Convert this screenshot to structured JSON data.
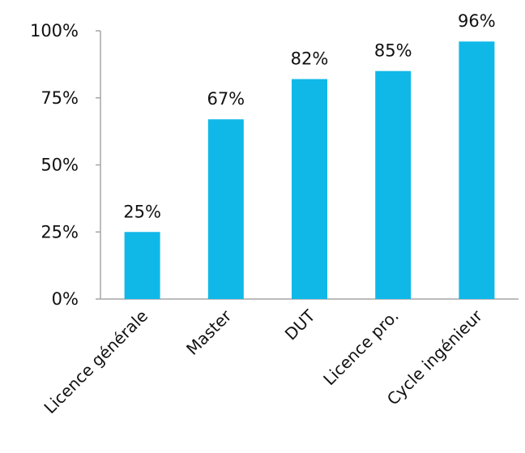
{
  "chart_data": {
    "type": "bar",
    "categories": [
      "Licence générale",
      "Master",
      "DUT",
      "Licence pro.",
      "Cycle ingénieur"
    ],
    "values": [
      25,
      67,
      82,
      85,
      96
    ],
    "data_labels": [
      "25%",
      "67%",
      "82%",
      "85%",
      "96%"
    ],
    "title": "",
    "xlabel": "",
    "ylabel": "",
    "ylim": [
      0,
      100
    ],
    "y_ticks": [
      0,
      25,
      50,
      75,
      100
    ],
    "y_tick_labels": [
      "0%",
      "25%",
      "50%",
      "75%",
      "100%"
    ],
    "grid": false,
    "legend": "none",
    "bar_color": "#10b8e8",
    "axis_color": "#a6a6a6"
  }
}
